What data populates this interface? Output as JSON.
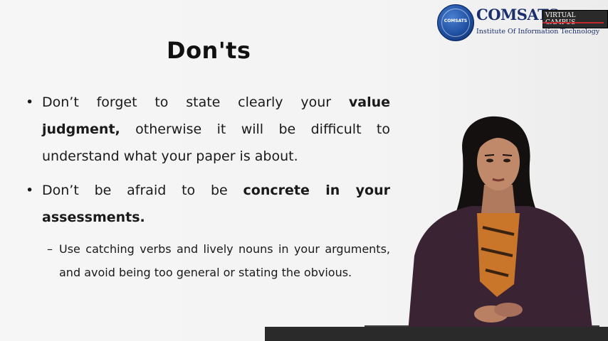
{
  "slide": {
    "title": "Don'ts",
    "bullets": [
      {
        "marker": "•",
        "text_before": "Don’t forget to state clearly your ",
        "bold": "value judgment,",
        "text_after": " otherwise it will be difficult to understand what your paper is about."
      },
      {
        "marker": "•",
        "text_before": "Don’t be afraid to be ",
        "bold": "concrete in your assessments.",
        "text_after": ""
      }
    ],
    "sub_bullets": [
      {
        "marker": "–",
        "text": "Use catching verbs and lively nouns in your arguments, and avoid being too general or stating the obvious."
      }
    ]
  },
  "logo": {
    "globe_text": "COMSATS",
    "brand": "COMSATS",
    "tag": "VIRTUAL CAMPUS",
    "subtitle": "Institute Of Information Technology"
  },
  "colors": {
    "brand_blue": "#1c2f6d",
    "accent_red": "#c0282d",
    "jacket": "#3a2434",
    "scarf": "#c9752a"
  }
}
